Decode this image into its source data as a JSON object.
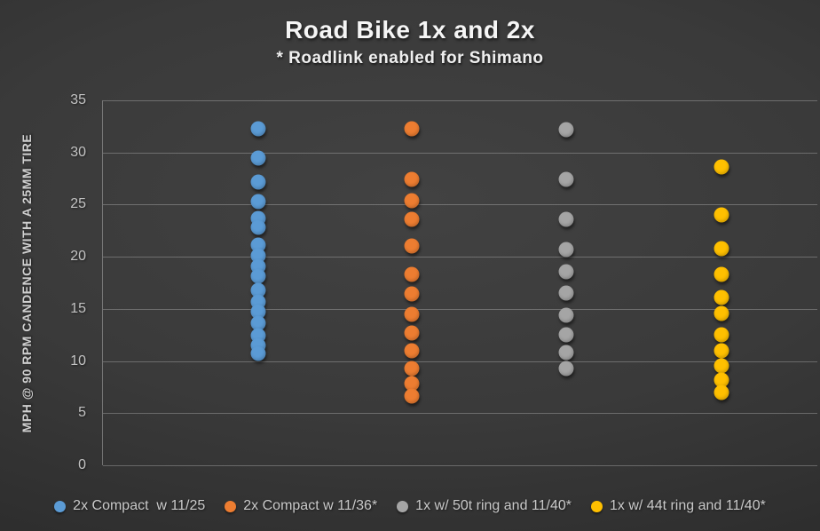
{
  "title": "Road Bike 1x and 2x",
  "subtitle": "* Roadlink enabled for Shimano",
  "y_axis": {
    "label": "MPH @ 90 RPM CANDENCE WITH A 25MM TIRE",
    "ticks": [
      35,
      30,
      25,
      20,
      15,
      10,
      5,
      0
    ]
  },
  "colors": {
    "background": "#3a3a3a",
    "text": "#c9c9c9",
    "title_text": "#f5f5f5",
    "gridline": "rgba(255,255,255,0.26)",
    "series_blue": "#5B9BD5",
    "series_orange": "#ED7D31",
    "series_gray": "#A5A5A5",
    "series_yellow": "#FFC000"
  },
  "chart_data": {
    "type": "scatter",
    "title": "Road Bike 1x and 2x",
    "subtitle": "* Roadlink enabled for Shimano",
    "xlabel": "",
    "ylabel": "MPH @ 90 RPM CANDENCE WITH A 25MM TIRE",
    "ylim": [
      0,
      35
    ],
    "grid": true,
    "legend_position": "bottom",
    "series": [
      {
        "name": "2x Compact  w 11/25",
        "color": "#5B9BD5",
        "x_fraction": 0.217,
        "values": [
          32.3,
          29.5,
          27.2,
          25.3,
          23.7,
          22.8,
          21.1,
          20.1,
          19.1,
          18.1,
          16.8,
          15.7,
          14.7,
          13.6,
          12.4,
          11.5,
          10.7
        ]
      },
      {
        "name": "2x Compact w 11/36*",
        "color": "#ED7D31",
        "x_fraction": 0.432,
        "values": [
          32.3,
          27.4,
          25.4,
          23.6,
          21.0,
          18.3,
          16.4,
          14.5,
          12.7,
          11.0,
          9.3,
          7.8,
          6.6
        ]
      },
      {
        "name": "1x w/ 50t ring and 11/40*",
        "color": "#A5A5A5",
        "x_fraction": 0.649,
        "values": [
          32.2,
          27.4,
          23.6,
          20.7,
          18.6,
          16.5,
          14.4,
          12.5,
          10.8,
          9.3
        ]
      },
      {
        "name": "1x w/ 44t ring and 11/40*",
        "color": "#FFC000",
        "x_fraction": 0.866,
        "values": [
          28.6,
          24.0,
          20.8,
          18.3,
          16.1,
          14.6,
          12.5,
          11.0,
          9.5,
          8.2,
          7.0
        ]
      }
    ]
  }
}
